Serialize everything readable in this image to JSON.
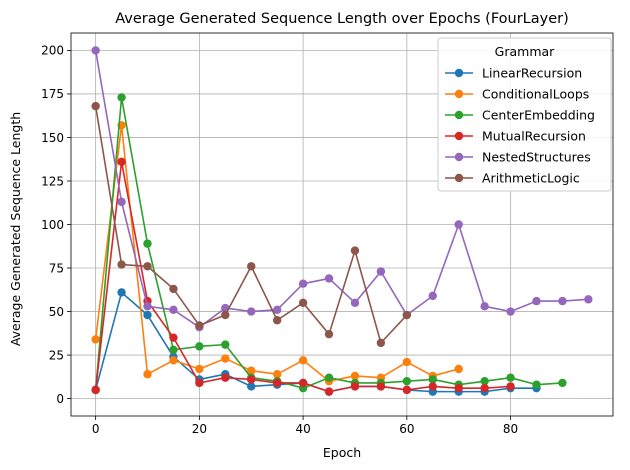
{
  "chart_data": {
    "type": "line",
    "title": "Average Generated Sequence Length over Epochs (FourLayer)",
    "xlabel": "Epoch",
    "ylabel": "Average Generated Sequence Length",
    "xlim": [
      -4.75,
      99.75
    ],
    "ylim": [
      -10,
      210
    ],
    "xticks": [
      0,
      20,
      40,
      60,
      80
    ],
    "yticks": [
      0,
      25,
      50,
      75,
      100,
      125,
      150,
      175,
      200
    ],
    "grid": true,
    "legend": {
      "title": "Grammar",
      "position": "upper right"
    },
    "series": [
      {
        "name": "LinearRecursion",
        "color": "#1f77b4",
        "x": [
          0,
          5,
          10,
          15,
          20,
          25,
          30,
          35,
          40,
          45,
          50,
          55,
          60,
          65,
          70,
          75,
          80,
          85
        ],
        "y": [
          5,
          61,
          48,
          24,
          11,
          14,
          7,
          8,
          9,
          4,
          7,
          7,
          5,
          4,
          4,
          4,
          6,
          6
        ]
      },
      {
        "name": "ConditionalLoops",
        "color": "#ff7f0e",
        "x": [
          0,
          5,
          10,
          15,
          20,
          25,
          30,
          35,
          40,
          45,
          50,
          55,
          60,
          65,
          70
        ],
        "y": [
          34,
          157,
          14,
          22,
          17,
          23,
          16,
          14,
          22,
          10,
          13,
          12,
          21,
          13,
          17
        ]
      },
      {
        "name": "CenterEmbedding",
        "color": "#2ca02c",
        "x": [
          0,
          5,
          10,
          15,
          20,
          25,
          30,
          35,
          40,
          45,
          50,
          55,
          60,
          65,
          70,
          75,
          80,
          85,
          90
        ],
        "y": [
          5,
          173,
          89,
          28,
          30,
          31,
          12,
          10,
          6,
          12,
          9,
          9,
          10,
          11,
          8,
          10,
          12,
          8,
          9
        ]
      },
      {
        "name": "MutualRecursion",
        "color": "#d62728",
        "x": [
          0,
          5,
          10,
          15,
          20,
          25,
          30,
          35,
          40,
          45,
          50,
          55,
          60,
          65,
          70,
          75,
          80
        ],
        "y": [
          5,
          136,
          56,
          35,
          9,
          12,
          11,
          9,
          9,
          4,
          7,
          7,
          5,
          7,
          6,
          6,
          7
        ]
      },
      {
        "name": "NestedStructures",
        "color": "#9467bd",
        "x": [
          0,
          5,
          10,
          15,
          20,
          25,
          30,
          35,
          40,
          45,
          50,
          55,
          60,
          65,
          70,
          75,
          80,
          85,
          90,
          95
        ],
        "y": [
          200,
          113,
          53,
          51,
          41,
          52,
          50,
          51,
          66,
          69,
          55,
          73,
          48,
          59,
          100,
          53,
          50,
          56,
          56,
          57
        ]
      },
      {
        "name": "ArithmeticLogic",
        "color": "#8c564b",
        "x": [
          0,
          5,
          10,
          15,
          20,
          25,
          30,
          35,
          40,
          45,
          50,
          55,
          60
        ],
        "y": [
          168,
          77,
          76,
          63,
          42,
          48,
          76,
          45,
          55,
          37,
          85,
          32,
          48
        ]
      }
    ]
  }
}
